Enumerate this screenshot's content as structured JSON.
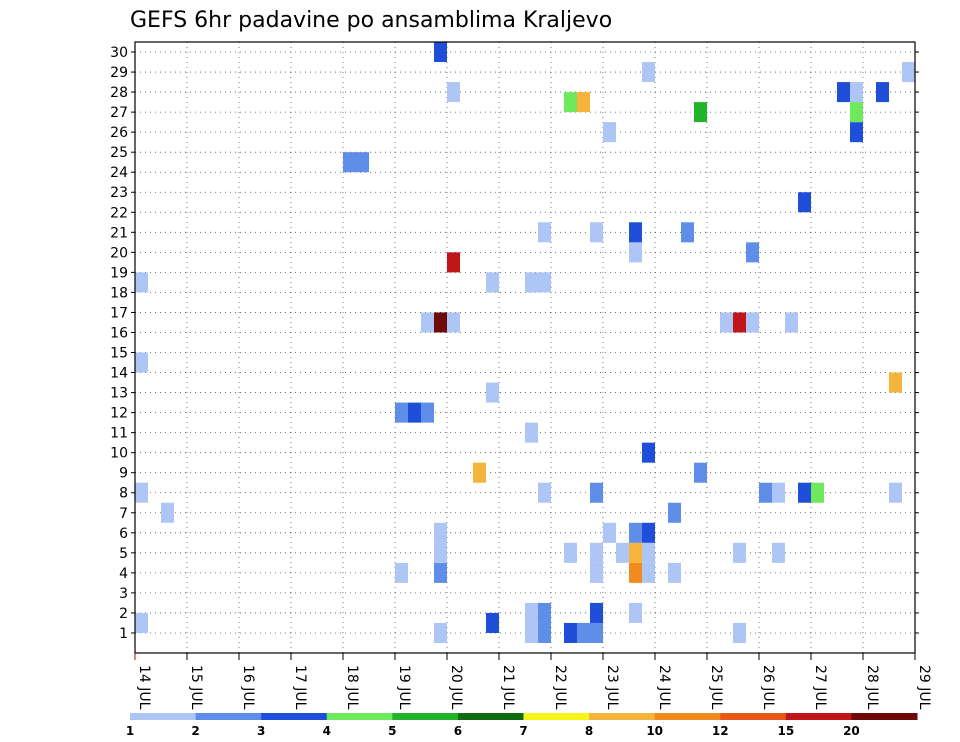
{
  "chart_data": {
    "type": "heatmap",
    "title": "GEFS 6hr padavine po ansamblima Kraljevo",
    "xlabel": "",
    "ylabel": "",
    "x_tick_labels": [
      "14 JUL",
      "15 JUL",
      "16 JUL",
      "17 JUL",
      "18 JUL",
      "19 JUL",
      "20 JUL",
      "21 JUL",
      "22 JUL",
      "23 JUL",
      "24 JUL",
      "25 JUL",
      "26 JUL",
      "27 JUL",
      "28 JUL",
      "29 JUL"
    ],
    "y_tick_labels": [
      "1",
      "2",
      "3",
      "4",
      "5",
      "6",
      "7",
      "8",
      "9",
      "10",
      "11",
      "12",
      "13",
      "14",
      "15",
      "16",
      "17",
      "18",
      "19",
      "20",
      "21",
      "22",
      "23",
      "24",
      "25",
      "26",
      "27",
      "28",
      "29",
      "30"
    ],
    "x_range_days": [
      14,
      29
    ],
    "y_range_members": [
      0,
      30
    ],
    "time_step_hours": 6,
    "grid": true,
    "colorbar": {
      "labels": [
        "1",
        "2",
        "3",
        "4",
        "5",
        "6",
        "7",
        "8",
        "10",
        "12",
        "15",
        "20"
      ],
      "colors": [
        "#aec6f5",
        "#5f8ee8",
        "#1f4fd8",
        "#6ee85c",
        "#22b32a",
        "#0f6b12",
        "#f5f51a",
        "#f5b43a",
        "#f08c1e",
        "#e8561a",
        "#c0161a",
        "#6e0a0a"
      ]
    },
    "cells": [
      {
        "day": 14.0,
        "member": 1.5,
        "bin": 1
      },
      {
        "day": 14.0,
        "member": 8,
        "bin": 1
      },
      {
        "day": 14.0,
        "member": 14.5,
        "bin": 1
      },
      {
        "day": 14.0,
        "member": 18.5,
        "bin": 1
      },
      {
        "day": 14.5,
        "member": 7,
        "bin": 1
      },
      {
        "day": 18.0,
        "member": 24.5,
        "bin": 2
      },
      {
        "day": 18.25,
        "member": 24.5,
        "bin": 2
      },
      {
        "day": 19.0,
        "member": 4,
        "bin": 1
      },
      {
        "day": 19.0,
        "member": 12,
        "bin": 2
      },
      {
        "day": 19.25,
        "member": 12,
        "bin": 3
      },
      {
        "day": 19.5,
        "member": 12,
        "bin": 2
      },
      {
        "day": 19.5,
        "member": 16.5,
        "bin": 1
      },
      {
        "day": 19.75,
        "member": 16.5,
        "bin": 12
      },
      {
        "day": 20.0,
        "member": 16.5,
        "bin": 1
      },
      {
        "day": 19.75,
        "member": 1,
        "bin": 1
      },
      {
        "day": 19.75,
        "member": 4,
        "bin": 2
      },
      {
        "day": 19.75,
        "member": 5,
        "bin": 1
      },
      {
        "day": 19.75,
        "member": 6,
        "bin": 1
      },
      {
        "day": 19.75,
        "member": 30,
        "bin": 3
      },
      {
        "day": 20.0,
        "member": 19.5,
        "bin": 11
      },
      {
        "day": 20.0,
        "member": 28,
        "bin": 1
      },
      {
        "day": 20.5,
        "member": 9,
        "bin": 8
      },
      {
        "day": 20.75,
        "member": 1.5,
        "bin": 3
      },
      {
        "day": 20.75,
        "member": 13,
        "bin": 1
      },
      {
        "day": 20.75,
        "member": 18.5,
        "bin": 1
      },
      {
        "day": 21.5,
        "member": 1,
        "bin": 1
      },
      {
        "day": 21.5,
        "member": 2,
        "bin": 1
      },
      {
        "day": 21.5,
        "member": 11,
        "bin": 1
      },
      {
        "day": 21.5,
        "member": 18.5,
        "bin": 1
      },
      {
        "day": 21.75,
        "member": 1,
        "bin": 2
      },
      {
        "day": 21.75,
        "member": 2,
        "bin": 2
      },
      {
        "day": 21.75,
        "member": 8,
        "bin": 1
      },
      {
        "day": 21.75,
        "member": 18.5,
        "bin": 1
      },
      {
        "day": 21.75,
        "member": 21,
        "bin": 1
      },
      {
        "day": 22.25,
        "member": 1,
        "bin": 3
      },
      {
        "day": 22.25,
        "member": 5,
        "bin": 1
      },
      {
        "day": 22.25,
        "member": 27.5,
        "bin": 4
      },
      {
        "day": 22.5,
        "member": 1,
        "bin": 2
      },
      {
        "day": 22.5,
        "member": 27.5,
        "bin": 8
      },
      {
        "day": 22.75,
        "member": 1,
        "bin": 2
      },
      {
        "day": 22.75,
        "member": 2,
        "bin": 3
      },
      {
        "day": 22.75,
        "member": 4,
        "bin": 1
      },
      {
        "day": 22.75,
        "member": 5,
        "bin": 1
      },
      {
        "day": 22.75,
        "member": 8,
        "bin": 2
      },
      {
        "day": 22.75,
        "member": 21,
        "bin": 1
      },
      {
        "day": 23.0,
        "member": 6,
        "bin": 1
      },
      {
        "day": 23.0,
        "member": 26,
        "bin": 1
      },
      {
        "day": 23.25,
        "member": 5,
        "bin": 1
      },
      {
        "day": 23.5,
        "member": 2,
        "bin": 1
      },
      {
        "day": 23.5,
        "member": 4,
        "bin": 9
      },
      {
        "day": 23.5,
        "member": 5,
        "bin": 8
      },
      {
        "day": 23.5,
        "member": 6,
        "bin": 2
      },
      {
        "day": 23.5,
        "member": 20,
        "bin": 1
      },
      {
        "day": 23.5,
        "member": 21,
        "bin": 3
      },
      {
        "day": 23.75,
        "member": 4,
        "bin": 1
      },
      {
        "day": 23.75,
        "member": 5,
        "bin": 1
      },
      {
        "day": 23.75,
        "member": 6,
        "bin": 3
      },
      {
        "day": 23.75,
        "member": 10,
        "bin": 3
      },
      {
        "day": 23.75,
        "member": 29,
        "bin": 1
      },
      {
        "day": 24.25,
        "member": 4,
        "bin": 1
      },
      {
        "day": 24.25,
        "member": 7,
        "bin": 2
      },
      {
        "day": 24.5,
        "member": 21,
        "bin": 2
      },
      {
        "day": 24.75,
        "member": 9,
        "bin": 2
      },
      {
        "day": 24.75,
        "member": 27,
        "bin": 5
      },
      {
        "day": 25.25,
        "member": 16.5,
        "bin": 1
      },
      {
        "day": 25.5,
        "member": 1,
        "bin": 1
      },
      {
        "day": 25.5,
        "member": 5,
        "bin": 1
      },
      {
        "day": 25.5,
        "member": 16.5,
        "bin": 11
      },
      {
        "day": 25.75,
        "member": 16.5,
        "bin": 1
      },
      {
        "day": 25.75,
        "member": 20,
        "bin": 2
      },
      {
        "day": 26.0,
        "member": 8,
        "bin": 2
      },
      {
        "day": 26.25,
        "member": 5,
        "bin": 1
      },
      {
        "day": 26.25,
        "member": 8,
        "bin": 1
      },
      {
        "day": 26.5,
        "member": 16.5,
        "bin": 1
      },
      {
        "day": 26.75,
        "member": 8,
        "bin": 3
      },
      {
        "day": 26.75,
        "member": 22.5,
        "bin": 3
      },
      {
        "day": 27.0,
        "member": 8,
        "bin": 4
      },
      {
        "day": 27.5,
        "member": 28,
        "bin": 3
      },
      {
        "day": 27.75,
        "member": 26,
        "bin": 3
      },
      {
        "day": 27.75,
        "member": 27,
        "bin": 4
      },
      {
        "day": 27.75,
        "member": 28,
        "bin": 1
      },
      {
        "day": 28.25,
        "member": 28,
        "bin": 3
      },
      {
        "day": 28.5,
        "member": 8,
        "bin": 1
      },
      {
        "day": 28.5,
        "member": 13.5,
        "bin": 8
      },
      {
        "day": 28.75,
        "member": 29,
        "bin": 1
      }
    ]
  }
}
